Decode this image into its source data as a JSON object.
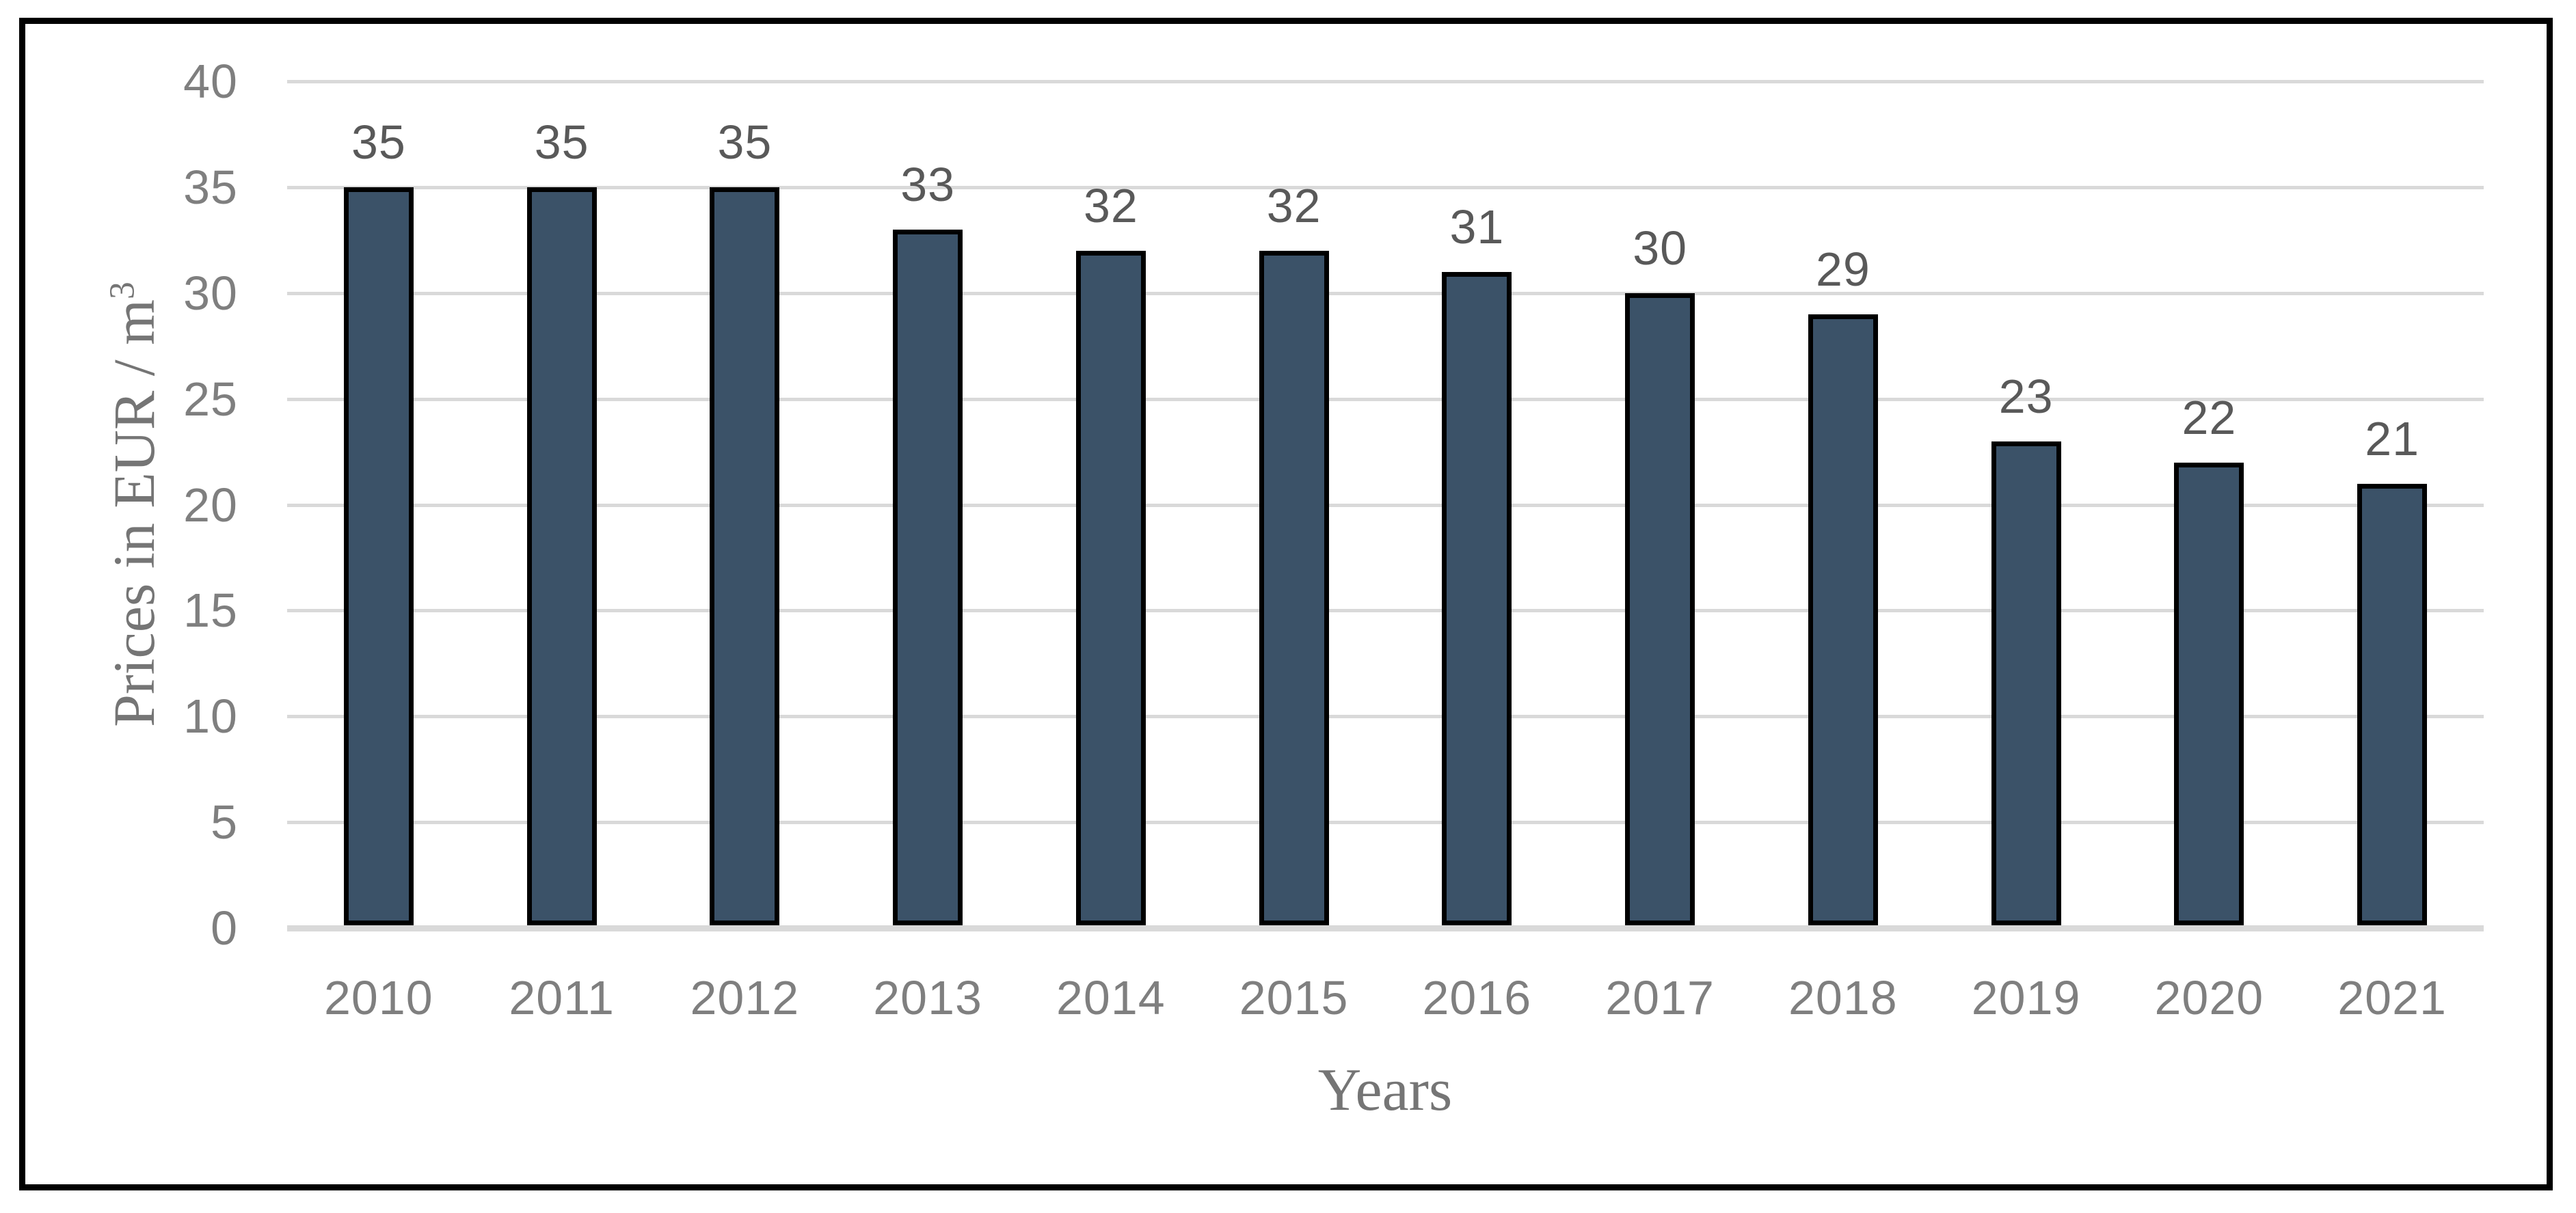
{
  "chart_data": {
    "type": "bar",
    "title": "",
    "categories": [
      "2010",
      "2011",
      "2012",
      "2013",
      "2014",
      "2015",
      "2016",
      "2017",
      "2018",
      "2019",
      "2020",
      "2021"
    ],
    "values": [
      35,
      35,
      35,
      33,
      32,
      32,
      31,
      30,
      29,
      23,
      22,
      21
    ],
    "data_labels": [
      "35",
      "35",
      "35",
      "33",
      "32",
      "32",
      "31",
      "30",
      "29",
      "23",
      "22",
      "21"
    ],
    "xlabel": "Years",
    "ylabel": "Prices in EUR / m³",
    "ylabel_text": "Prices in EUR / m",
    "ylabel_superscript": "3",
    "ylim": [
      0,
      40
    ],
    "y_ticks": [
      40,
      35,
      30,
      25,
      20,
      15,
      10,
      5,
      0
    ],
    "grid": "horizontal",
    "legend": "none",
    "colors": {
      "bar_fill": "#3B5268",
      "bar_border": "#000000",
      "gridline": "#D9D9D9",
      "axis_line": "#D9D9D9",
      "tick_label": "#7F7F7F",
      "data_label": "#595959",
      "axis_title": "#757575",
      "frame_border": "#000000",
      "background": "#FFFFFF"
    }
  }
}
